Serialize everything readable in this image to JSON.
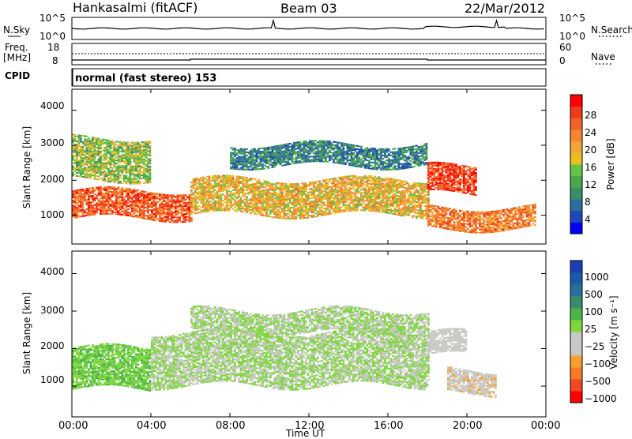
{
  "header": {
    "station": "Hankasalmi (fitACF)",
    "beam": "Beam 03",
    "date": "22/Mar/2012"
  },
  "noise_panel": {
    "left_label": "N.Sky",
    "right_label": "N.Search",
    "left_ticks": [
      "10^5",
      "10^0"
    ],
    "right_ticks": [
      "10^5",
      "10^0"
    ]
  },
  "freq_panel": {
    "left_label_1": "Freq.",
    "left_label_2": "[MHz]",
    "left_ticks": [
      "18",
      "8"
    ],
    "right_label": "Nave",
    "right_ticks": [
      "60",
      "0"
    ]
  },
  "cpid_panel": {
    "label": "CPID",
    "mode_text": "normal (fast stereo) 153"
  },
  "x_axis": {
    "ticks": [
      "00:00",
      "04:00",
      "08:00",
      "12:00",
      "16:00",
      "20:00",
      "00:00"
    ],
    "label": "Time UT"
  },
  "y_axis": {
    "label": "Slant Range [km]",
    "ticks": [
      "4000",
      "3000",
      "2000",
      "1000"
    ]
  },
  "power_colorbar": {
    "label": "Power [dB]",
    "ticks": [
      "28",
      "24",
      "20",
      "16",
      "12",
      "8",
      "4"
    ],
    "colors": [
      "#0000ff",
      "#1f47b5",
      "#2a6f9a",
      "#3a8c6a",
      "#49a849",
      "#62c447",
      "#e8c020",
      "#f4a53a",
      "#f58530",
      "#f06425",
      "#ee3b1b",
      "#ff0000"
    ]
  },
  "velocity_colorbar": {
    "label": "Velocity [m s⁻¹]",
    "ticks": [
      "1000",
      "500",
      "100",
      "25",
      "−25",
      "−100",
      "−500",
      "−1000"
    ],
    "colors": [
      "#ff0000",
      "#f24a1e",
      "#f77a26",
      "#f7a030",
      "#c8c8c4",
      "#c8c8c4",
      "#7ed63c",
      "#4ab44a",
      "#3a8c6a",
      "#2a6f9a",
      "#1f5aa8",
      "#1a3fb5"
    ]
  },
  "chart_data": {
    "type": "heatmap",
    "title": "Hankasalmi (fitACF) Beam 03 22/Mar/2012",
    "xlabel": "Time UT",
    "ylabel": "Slant Range [km]",
    "xlim": [
      0,
      24
    ],
    "ylim": [
      180,
      4600
    ],
    "x_ticks": [
      "00:00",
      "04:00",
      "08:00",
      "12:00",
      "16:00",
      "20:00",
      "00:00"
    ],
    "y_ticks": [
      1000,
      2000,
      3000,
      4000
    ],
    "power_scale_db": [
      0,
      30
    ],
    "velocity_scale_ms": [
      -1000,
      1000
    ],
    "frequency_mhz_approx": 12,
    "nave_approx": 27,
    "power_bands": [
      {
        "t0": 0.0,
        "t1": 6.0,
        "r0": 900,
        "r1": 1700,
        "power_db": 24
      },
      {
        "t0": 6.0,
        "t1": 18.0,
        "r0": 1000,
        "r1": 2000,
        "power_db": 18
      },
      {
        "t0": 0.0,
        "t1": 4.0,
        "r0": 2000,
        "r1": 3200,
        "power_db": 14
      },
      {
        "t0": 8.0,
        "t1": 18.0,
        "r0": 2400,
        "r1": 3000,
        "power_db": 8
      },
      {
        "t0": 18.0,
        "t1": 20.5,
        "r0": 1600,
        "r1": 2400,
        "power_db": 26
      },
      {
        "t0": 18.0,
        "t1": 23.5,
        "r0": 600,
        "r1": 1200,
        "power_db": 22
      }
    ],
    "velocity_bands": [
      {
        "t0": 0.0,
        "t1": 4.0,
        "r0": 900,
        "r1": 2000,
        "velocity_ms": 150
      },
      {
        "t0": 4.0,
        "t1": 18.0,
        "r0": 1000,
        "r1": 2400,
        "velocity_ms": 0
      },
      {
        "t0": 6.0,
        "t1": 18.0,
        "r0": 2400,
        "r1": 3000,
        "velocity_ms": 0
      },
      {
        "t0": 18.0,
        "t1": 20.0,
        "r0": 1800,
        "r1": 2400,
        "velocity_ms": -200
      },
      {
        "t0": 19.0,
        "t1": 21.5,
        "r0": 800,
        "r1": 1400,
        "velocity_ms": -300
      }
    ]
  }
}
